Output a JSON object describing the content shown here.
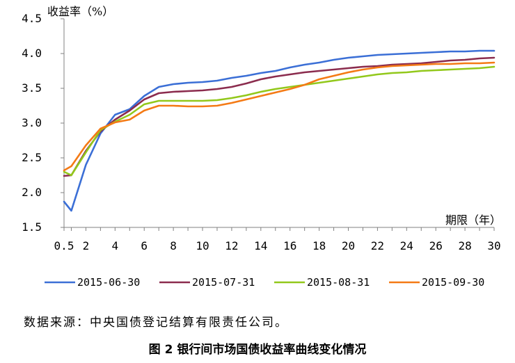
{
  "chart_data": {
    "type": "line",
    "ylabel": "收益率（%）",
    "xlabel": "期限（年）",
    "ylim": [
      1.5,
      4.5
    ],
    "yticks": [
      "1.5",
      "2.0",
      "2.5",
      "3.0",
      "3.5",
      "4.0",
      "4.5"
    ],
    "xticks": [
      "0.5",
      "2",
      "4",
      "6",
      "8",
      "10",
      "12",
      "14",
      "16",
      "18",
      "20",
      "22",
      "24",
      "26",
      "28",
      "30"
    ],
    "legend_position": "bottom",
    "grid": false,
    "x": [
      0.5,
      1,
      2,
      3,
      4,
      5,
      6,
      7,
      8,
      9,
      10,
      11,
      12,
      13,
      14,
      15,
      16,
      17,
      18,
      19,
      20,
      21,
      22,
      23,
      24,
      25,
      26,
      27,
      28,
      29,
      30
    ],
    "series": [
      {
        "name": "2015-06-30",
        "color": "#3b6fd6",
        "values": [
          1.87,
          1.74,
          2.4,
          2.85,
          3.12,
          3.2,
          3.39,
          3.52,
          3.56,
          3.58,
          3.59,
          3.61,
          3.65,
          3.68,
          3.72,
          3.75,
          3.8,
          3.84,
          3.87,
          3.91,
          3.94,
          3.96,
          3.98,
          3.99,
          4.0,
          4.01,
          4.02,
          4.03,
          4.03,
          4.04,
          4.04
        ]
      },
      {
        "name": "2015-07-31",
        "color": "#8b2c4e",
        "values": [
          2.24,
          2.25,
          2.6,
          2.88,
          3.05,
          3.18,
          3.34,
          3.43,
          3.45,
          3.46,
          3.47,
          3.49,
          3.52,
          3.57,
          3.63,
          3.67,
          3.7,
          3.73,
          3.75,
          3.77,
          3.79,
          3.81,
          3.82,
          3.84,
          3.85,
          3.86,
          3.88,
          3.9,
          3.91,
          3.93,
          3.94
        ]
      },
      {
        "name": "2015-08-31",
        "color": "#92c81b",
        "values": [
          2.3,
          2.25,
          2.58,
          2.9,
          3.02,
          3.12,
          3.27,
          3.32,
          3.32,
          3.32,
          3.32,
          3.33,
          3.36,
          3.4,
          3.45,
          3.49,
          3.52,
          3.55,
          3.58,
          3.61,
          3.64,
          3.67,
          3.7,
          3.72,
          3.73,
          3.75,
          3.76,
          3.77,
          3.78,
          3.79,
          3.81
        ]
      },
      {
        "name": "2015-09-30",
        "color": "#f47a15",
        "values": [
          2.32,
          2.38,
          2.68,
          2.92,
          3.01,
          3.05,
          3.18,
          3.25,
          3.25,
          3.24,
          3.24,
          3.25,
          3.29,
          3.34,
          3.39,
          3.44,
          3.49,
          3.55,
          3.63,
          3.68,
          3.73,
          3.77,
          3.8,
          3.82,
          3.83,
          3.84,
          3.85,
          3.85,
          3.86,
          3.86,
          3.87
        ]
      }
    ]
  },
  "source_note": "数据来源：中央国债登记结算有限责任公司。",
  "caption": "图 2 银行间市场国债收益率曲线变化情况"
}
